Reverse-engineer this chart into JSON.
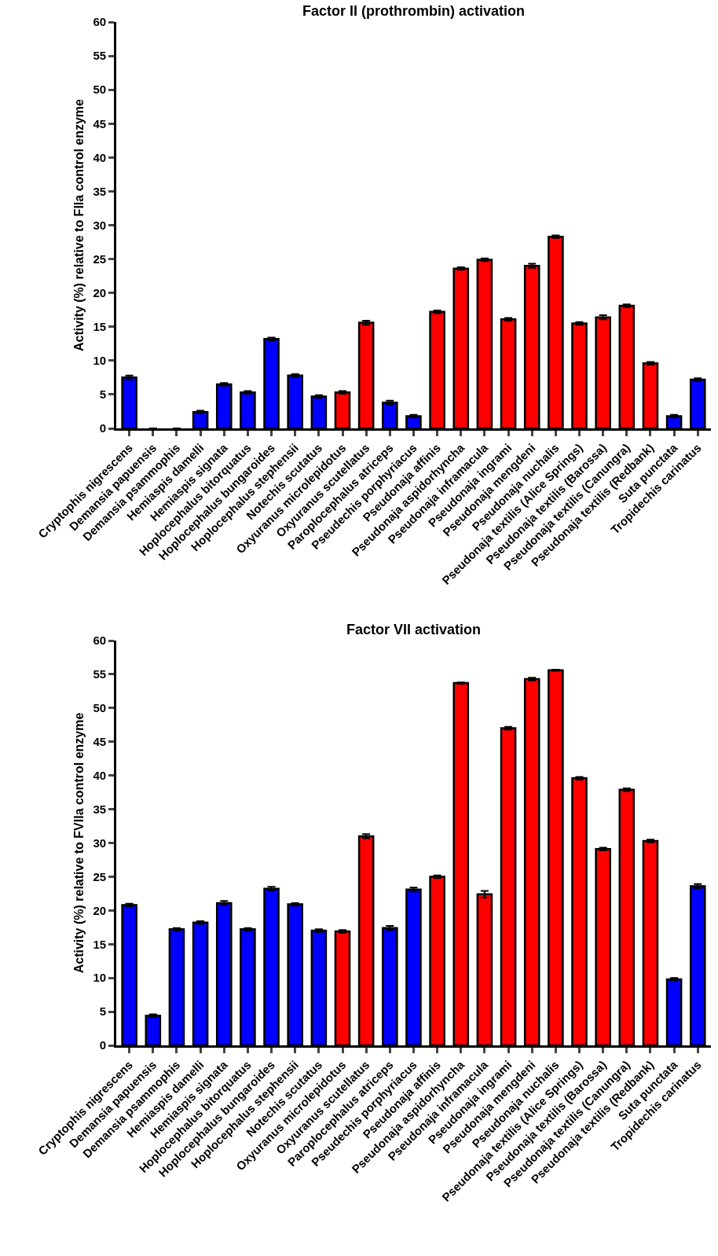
{
  "chart_data": [
    {
      "type": "bar",
      "title": "Factor II (prothrombin) activation",
      "ylabel": "Activity (%) relative to FIIa control enzyme",
      "categories": [
        "Cryptophis nigrescens",
        "Demansia papuensis",
        "Demansia psammophis",
        "Hemiaspis damelli",
        "Hemiaspis signata",
        "Hoplocephalus bitorquatus",
        "Hoplocephalus bungaroides",
        "Hoplocephalus stephensii",
        "Notechis scutatus",
        "Oxyuranus microlepidotus",
        "Oxyuranus scutellatus",
        "Paroplocephalus atriceps",
        "Pseudechis porphyriacus",
        "Pseudonaja affinis",
        "Pseudonaja aspidorhyncha",
        "Pseudonaja inframacula",
        "Pseudonaja ingrami",
        "Pseudonaja mengdeni",
        "Pseudonaja nuchalis",
        "Pseudonaja textilis (Alice Springs)",
        "Pseudonaja textilis (Barossa)",
        "Pseudonaja textilis (Canungra)",
        "Pseudonaja textilis (Redbank)",
        "Suta punctata",
        "Tropidechis carinatus"
      ],
      "values": [
        7.5,
        0,
        0,
        2.4,
        6.5,
        5.3,
        13.2,
        7.8,
        4.7,
        5.3,
        15.6,
        3.8,
        1.8,
        17.2,
        23.6,
        24.9,
        16.1,
        24.0,
        28.3,
        15.5,
        16.4,
        18.1,
        9.6,
        1.8,
        7.2
      ],
      "errors": [
        0.3,
        null,
        null,
        0.2,
        0.2,
        0.2,
        0.2,
        0.2,
        0.2,
        0.2,
        0.3,
        0.3,
        0.2,
        0.2,
        0.2,
        0.2,
        0.2,
        0.3,
        0.2,
        0.2,
        0.3,
        0.2,
        0.2,
        0.2,
        0.2
      ],
      "colors": [
        "#0000ff",
        "#0000ff",
        "#0000ff",
        "#0000ff",
        "#0000ff",
        "#0000ff",
        "#0000ff",
        "#0000ff",
        "#0000ff",
        "#ff0000",
        "#ff0000",
        "#0000ff",
        "#0000ff",
        "#ff0000",
        "#ff0000",
        "#ff0000",
        "#ff0000",
        "#ff0000",
        "#ff0000",
        "#ff0000",
        "#ff0000",
        "#ff0000",
        "#ff0000",
        "#0000ff",
        "#0000ff"
      ],
      "ylim": [
        0,
        60
      ],
      "yticks": [
        0,
        5,
        10,
        15,
        20,
        25,
        30,
        35,
        40,
        45,
        50,
        55,
        60
      ]
    },
    {
      "type": "bar",
      "title": "Factor VII activation",
      "ylabel": "Activity (%) relative to FVIIa control enzyme",
      "categories": [
        "Cryptophis nigrescens",
        "Demansia papuensis",
        "Demansia psammophis",
        "Hemiaspis damelli",
        "Hemiaspis signata",
        "Hoplocephalus bitorquatus",
        "Hoplocephalus bungaroides",
        "Hoplocephalus stephensii",
        "Notechis scutatus",
        "Oxyuranus microlepidotus",
        "Oxyuranus scutellatus",
        "Paroplocephalus atriceps",
        "Pseudechis porphyriacus",
        "Pseudonaja affinis",
        "Pseudonaja aspidorhyncha",
        "Pseudonaja inframacula",
        "Pseudonaja ingrami",
        "Pseudonaja mengdeni",
        "Pseudonaja nuchalis",
        "Pseudonaja textilis (Alice Springs)",
        "Pseudonaja textilis (Barossa)",
        "Pseudonaja textilis (Canungra)",
        "Pseudonaja textilis (Redbank)",
        "Suta punctata",
        "Tropidechis carinatus"
      ],
      "values": [
        20.8,
        4.4,
        17.2,
        18.2,
        21.1,
        17.2,
        23.2,
        20.9,
        17.0,
        16.9,
        31.0,
        17.4,
        23.1,
        25.0,
        53.7,
        22.4,
        47.0,
        54.3,
        55.6,
        39.6,
        29.1,
        37.9,
        30.3,
        9.8,
        23.6
      ],
      "errors": [
        0.2,
        0.2,
        0.2,
        0.2,
        0.3,
        0.2,
        0.3,
        0.2,
        0.2,
        0.2,
        0.3,
        0.3,
        0.3,
        0.2,
        0.1,
        0.5,
        0.2,
        0.2,
        0.1,
        0.2,
        0.2,
        0.2,
        0.2,
        0.2,
        0.3
      ],
      "colors": [
        "#0000ff",
        "#0000ff",
        "#0000ff",
        "#0000ff",
        "#0000ff",
        "#0000ff",
        "#0000ff",
        "#0000ff",
        "#0000ff",
        "#ff0000",
        "#ff0000",
        "#0000ff",
        "#0000ff",
        "#ff0000",
        "#ff0000",
        "#ff0000",
        "#ff0000",
        "#ff0000",
        "#ff0000",
        "#ff0000",
        "#ff0000",
        "#ff0000",
        "#ff0000",
        "#0000ff",
        "#0000ff"
      ],
      "ylim": [
        0,
        60
      ],
      "yticks": [
        0,
        5,
        10,
        15,
        20,
        25,
        30,
        35,
        40,
        45,
        50,
        55,
        60
      ]
    }
  ]
}
